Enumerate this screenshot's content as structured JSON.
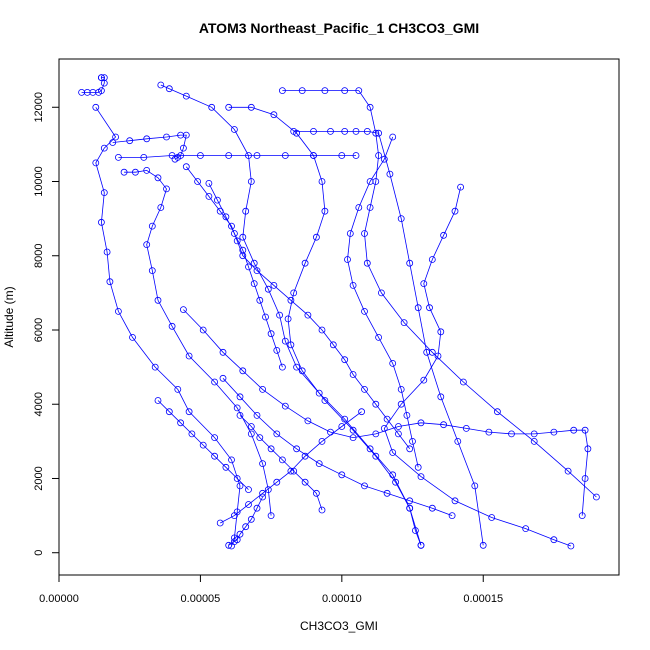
{
  "chart_data": {
    "type": "scatter",
    "title": "ATOM3 Northeast_Pacific_1 CH3CO3_GMI",
    "xlabel": "CH3CO3_GMI",
    "ylabel": "Altitude (m)",
    "xlim": [
      0,
      0.000198
    ],
    "ylim": [
      -600,
      13300
    ],
    "x_ticks": [
      0,
      5e-05,
      0.0001,
      0.00015
    ],
    "x_tick_labels": [
      "0.00000",
      "0.00005",
      "0.00010",
      "0.00015"
    ],
    "y_ticks": [
      0,
      2000,
      4000,
      6000,
      8000,
      10000,
      12000
    ],
    "y_tick_labels": [
      "0",
      "2000",
      "4000",
      "6000",
      "8000",
      "10000",
      "12000"
    ],
    "grid": false,
    "legend": "none",
    "color": "#0000ff",
    "marker": "open-circle",
    "series": [
      {
        "x": [
          1.3e-05,
          2e-05,
          1.6e-05,
          1.3e-05,
          1.6e-05,
          1.5e-05,
          1.7e-05,
          1.8e-05,
          2.1e-05,
          2.6e-05,
          3.4e-05,
          4.2e-05,
          4.6e-05,
          5.5e-05,
          6.1e-05,
          6.4e-05,
          6.3e-05,
          6.2e-05,
          6.1e-05
        ],
        "y": [
          12000,
          11200,
          10900,
          10500,
          9700,
          8900,
          8100,
          7300,
          6500,
          5800,
          5000,
          4400,
          3800,
          3100,
          2500,
          1800,
          1100,
          400,
          180
        ]
      },
      {
        "x": [
          8e-06,
          1e-05,
          1.2e-05,
          1.4e-05,
          1.5e-05,
          1.6e-05,
          1.6e-05,
          1.5e-05,
          1.5e-05
        ],
        "y": [
          12400,
          12400,
          12400,
          12400,
          12450,
          12650,
          12800,
          12800,
          12800
        ]
      },
      {
        "x": [
          1.9e-05,
          2.5e-05,
          3.1e-05,
          3.8e-05,
          4.3e-05,
          4.5e-05,
          4.4e-05,
          4.3e-05,
          4.2e-05,
          4.1e-05
        ],
        "y": [
          11050,
          11100,
          11150,
          11200,
          11250,
          11250,
          10900,
          10700,
          10650,
          10600
        ]
      },
      {
        "x": [
          2.1e-05,
          3e-05,
          4e-05,
          5e-05,
          6e-05,
          7e-05,
          8e-05,
          9e-05,
          0.0001,
          0.000105
        ],
        "y": [
          10650,
          10650,
          10700,
          10700,
          10700,
          10700,
          10700,
          10700,
          10700,
          10700
        ]
      },
      {
        "x": [
          2.3e-05,
          2.7e-05,
          3.1e-05,
          3.5e-05,
          3.8e-05,
          3.6e-05,
          3.3e-05,
          3.1e-05,
          3.3e-05,
          3.5e-05,
          4e-05,
          4.6e-05,
          5.5e-05,
          6.3e-05,
          6.8e-05,
          7.2e-05,
          7.4e-05,
          7.5e-05
        ],
        "y": [
          10250,
          10250,
          10300,
          10100,
          9800,
          9300,
          8800,
          8300,
          7600,
          6800,
          6100,
          5300,
          4600,
          3900,
          3200,
          2400,
          1700,
          1000
        ]
      },
      {
        "x": [
          3.6e-05,
          3.9e-05,
          4.5e-05,
          5.4e-05,
          6.2e-05,
          6.7e-05,
          6.8e-05,
          6.6e-05,
          6.5e-05,
          6.9e-05,
          7.4e-05,
          7.8e-05,
          8e-05,
          8.4e-05,
          9.2e-05,
          0.000101,
          0.00011,
          0.000118,
          0.000124,
          0.000128
        ],
        "y": [
          12600,
          12500,
          12300,
          12000,
          11400,
          10700,
          10000,
          9200,
          8500,
          7800,
          7100,
          6400,
          5700,
          5000,
          4300,
          3600,
          2800,
          2100,
          1200,
          200
        ]
      },
      {
        "x": [
          6e-05,
          6.8e-05,
          7.6e-05,
          8.4e-05,
          9e-05,
          9.3e-05,
          9.4e-05,
          9.1e-05,
          8.7e-05,
          8.3e-05,
          8.1e-05,
          8.2e-05,
          8.6e-05,
          9.4e-05,
          0.000104,
          0.000112,
          0.000119,
          0.000124,
          0.000126,
          0.000128
        ],
        "y": [
          12000,
          12000,
          11800,
          11300,
          10700,
          10000,
          9200,
          8500,
          7800,
          7000,
          6300,
          5600,
          4900,
          4100,
          3300,
          2600,
          1900,
          1200,
          600,
          200
        ]
      },
      {
        "x": [
          7.9e-05,
          8.6e-05,
          9.4e-05,
          0.000101,
          0.000106,
          0.00011,
          0.000112,
          0.000113,
          0.000112,
          0.00011,
          0.000108,
          0.000109,
          0.000114,
          0.000122,
          0.000132,
          0.000143,
          0.000155,
          0.000168,
          0.00018,
          0.00019
        ],
        "y": [
          12450,
          12450,
          12450,
          12450,
          12450,
          12000,
          11300,
          10700,
          10000,
          9300,
          8600,
          7800,
          7000,
          6200,
          5400,
          4600,
          3800,
          3000,
          2200,
          1500
        ]
      },
      {
        "x": [
          0.000142,
          0.00014,
          0.000136,
          0.000132,
          0.000129,
          0.000131,
          0.000135,
          0.000134,
          0.000129,
          0.000121,
          0.000115,
          0.000118,
          0.000128,
          0.00014,
          0.000153,
          0.000165,
          0.000175,
          0.000181
        ],
        "y": [
          9850,
          9200,
          8550,
          7900,
          7250,
          6600,
          5950,
          5300,
          4650,
          4000,
          3350,
          2700,
          2050,
          1400,
          950,
          650,
          350,
          180
        ]
      },
      {
        "x": [
          0.000118,
          0.000115,
          0.00011,
          0.000106,
          0.000103,
          0.000102,
          0.000104,
          0.000108,
          0.000113,
          0.000118,
          0.000121,
          0.000123,
          0.000125,
          0.000127
        ],
        "y": [
          11200,
          10600,
          10000,
          9300,
          8600,
          7900,
          7200,
          6500,
          5800,
          5100,
          4400,
          3700,
          3000,
          2300
        ]
      },
      {
        "x": [
          8.3e-05,
          9e-05,
          9.6e-05,
          0.000101,
          0.000105,
          0.000109,
          0.000113,
          0.000117,
          0.000121,
          0.000124,
          0.000127,
          0.00013,
          0.000135,
          0.000141,
          0.000147,
          0.00015
        ],
        "y": [
          11350,
          11350,
          11350,
          11350,
          11350,
          11350,
          11300,
          10200,
          9000,
          7800,
          6600,
          5400,
          4200,
          3000,
          1800,
          200
        ]
      },
      {
        "x": [
          4.5e-05,
          4.9e-05,
          5.3e-05,
          5.7e-05,
          6.1e-05,
          6.3e-05,
          6.5e-05,
          7e-05,
          7.6e-05,
          8.2e-05,
          8.8e-05,
          9.3e-05,
          9.7e-05,
          0.000101,
          0.000104,
          0.000108,
          0.000112,
          0.000116,
          0.00012,
          0.000124
        ],
        "y": [
          10400,
          10000,
          9600,
          9200,
          8800,
          8400,
          8000,
          7600,
          7200,
          6800,
          6400,
          6000,
          5600,
          5200,
          4800,
          4400,
          4000,
          3600,
          3200,
          2800
        ]
      },
      {
        "x": [
          5.3e-05,
          5.6e-05,
          5.9e-05,
          6.2e-05,
          6.5e-05,
          6.7e-05,
          6.9e-05,
          7.1e-05,
          7.3e-05,
          7.5e-05,
          7.7e-05,
          7.9e-05
        ],
        "y": [
          9950,
          9500,
          9050,
          8600,
          8150,
          7700,
          7250,
          6800,
          6350,
          5900,
          5450,
          5000
        ]
      },
      {
        "x": [
          4.4e-05,
          5.1e-05,
          5.8e-05,
          6.5e-05,
          7.2e-05,
          8e-05,
          8.8e-05,
          9.6e-05,
          0.000104,
          0.000112,
          0.00012,
          0.000128,
          0.000136,
          0.000144,
          0.000152,
          0.00016,
          0.000168,
          0.000175,
          0.000182,
          0.000186,
          0.000187,
          0.000186,
          0.000185
        ],
        "y": [
          6550,
          6000,
          5400,
          4900,
          4400,
          3950,
          3550,
          3250,
          3100,
          3200,
          3400,
          3500,
          3450,
          3350,
          3250,
          3200,
          3200,
          3250,
          3300,
          3300,
          2800,
          2000,
          1000
        ]
      },
      {
        "x": [
          5.8e-05,
          6.4e-05,
          7e-05,
          7.7e-05,
          8.4e-05,
          9.2e-05,
          0.0001,
          0.000108,
          0.000116,
          0.000124,
          0.000132,
          0.000139
        ],
        "y": [
          4700,
          4200,
          3700,
          3200,
          2800,
          2400,
          2100,
          1800,
          1600,
          1400,
          1200,
          1000
        ]
      },
      {
        "x": [
          5.7e-05,
          6.2e-05,
          6.7e-05,
          7.2e-05,
          7.7e-05,
          8.2e-05,
          8.7e-05,
          9.3e-05,
          0.0001,
          0.000107
        ],
        "y": [
          800,
          1000,
          1300,
          1600,
          1900,
          2200,
          2600,
          3000,
          3400,
          3800
        ]
      },
      {
        "x": [
          6e-05,
          6.2e-05,
          6.3e-05,
          6.4e-05,
          6.6e-05,
          6.8e-05,
          7e-05,
          7.2e-05
        ],
        "y": [
          200,
          300,
          350,
          500,
          700,
          900,
          1200,
          1500
        ]
      },
      {
        "x": [
          3.5e-05,
          3.9e-05,
          4.3e-05,
          4.7e-05,
          5.1e-05,
          5.5e-05,
          5.9e-05,
          6.3e-05,
          6.7e-05
        ],
        "y": [
          4100,
          3800,
          3500,
          3200,
          2900,
          2600,
          2300,
          2000,
          1700
        ]
      },
      {
        "x": [
          6.4e-05,
          6.8e-05,
          7.1e-05,
          7.5e-05,
          7.9e-05,
          8.3e-05,
          8.7e-05,
          9.1e-05,
          9.3e-05
        ],
        "y": [
          3700,
          3400,
          3100,
          2800,
          2500,
          2200,
          1900,
          1600,
          1150
        ]
      }
    ]
  }
}
